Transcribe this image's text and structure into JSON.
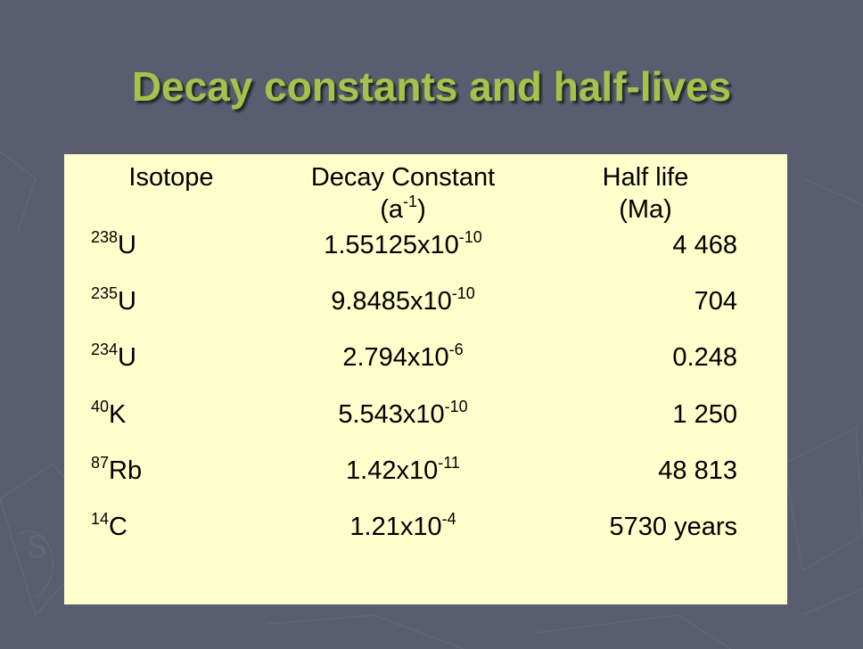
{
  "title": "Decay constants and half-lives",
  "table": {
    "headers": {
      "isotope": "Isotope",
      "decay_constant": "Decay Constant",
      "decay_unit_base": "(a",
      "decay_unit_exp": "-1",
      "decay_unit_close": ")",
      "half_life": "Half life",
      "half_life_unit": "(Ma)"
    },
    "rows": [
      {
        "mass": "238",
        "element": "U",
        "mantissa": "1.55125x10",
        "exp": "-10",
        "half_life": "4 468"
      },
      {
        "mass": "235",
        "element": "U",
        "mantissa": "9.8485x10",
        "exp": "-10",
        "half_life": "704"
      },
      {
        "mass": "234",
        "element": "U",
        "mantissa": "2.794x10",
        "exp": "-6",
        "half_life": "0.248"
      },
      {
        "mass": "40",
        "element": "K",
        "mantissa": "5.543x10",
        "exp": "-10",
        "half_life": "1 250"
      },
      {
        "mass": "87",
        "element": "Rb",
        "mantissa": "1.42x10",
        "exp": "-11",
        "half_life": "48 813"
      },
      {
        "mass": "14",
        "element": "C",
        "mantissa": "1.21x10",
        "exp": "-4",
        "half_life": "5730 years"
      }
    ]
  },
  "colors": {
    "background": "#5a5d6f",
    "title": "#a6c24a",
    "panel": "#ffffcc"
  }
}
